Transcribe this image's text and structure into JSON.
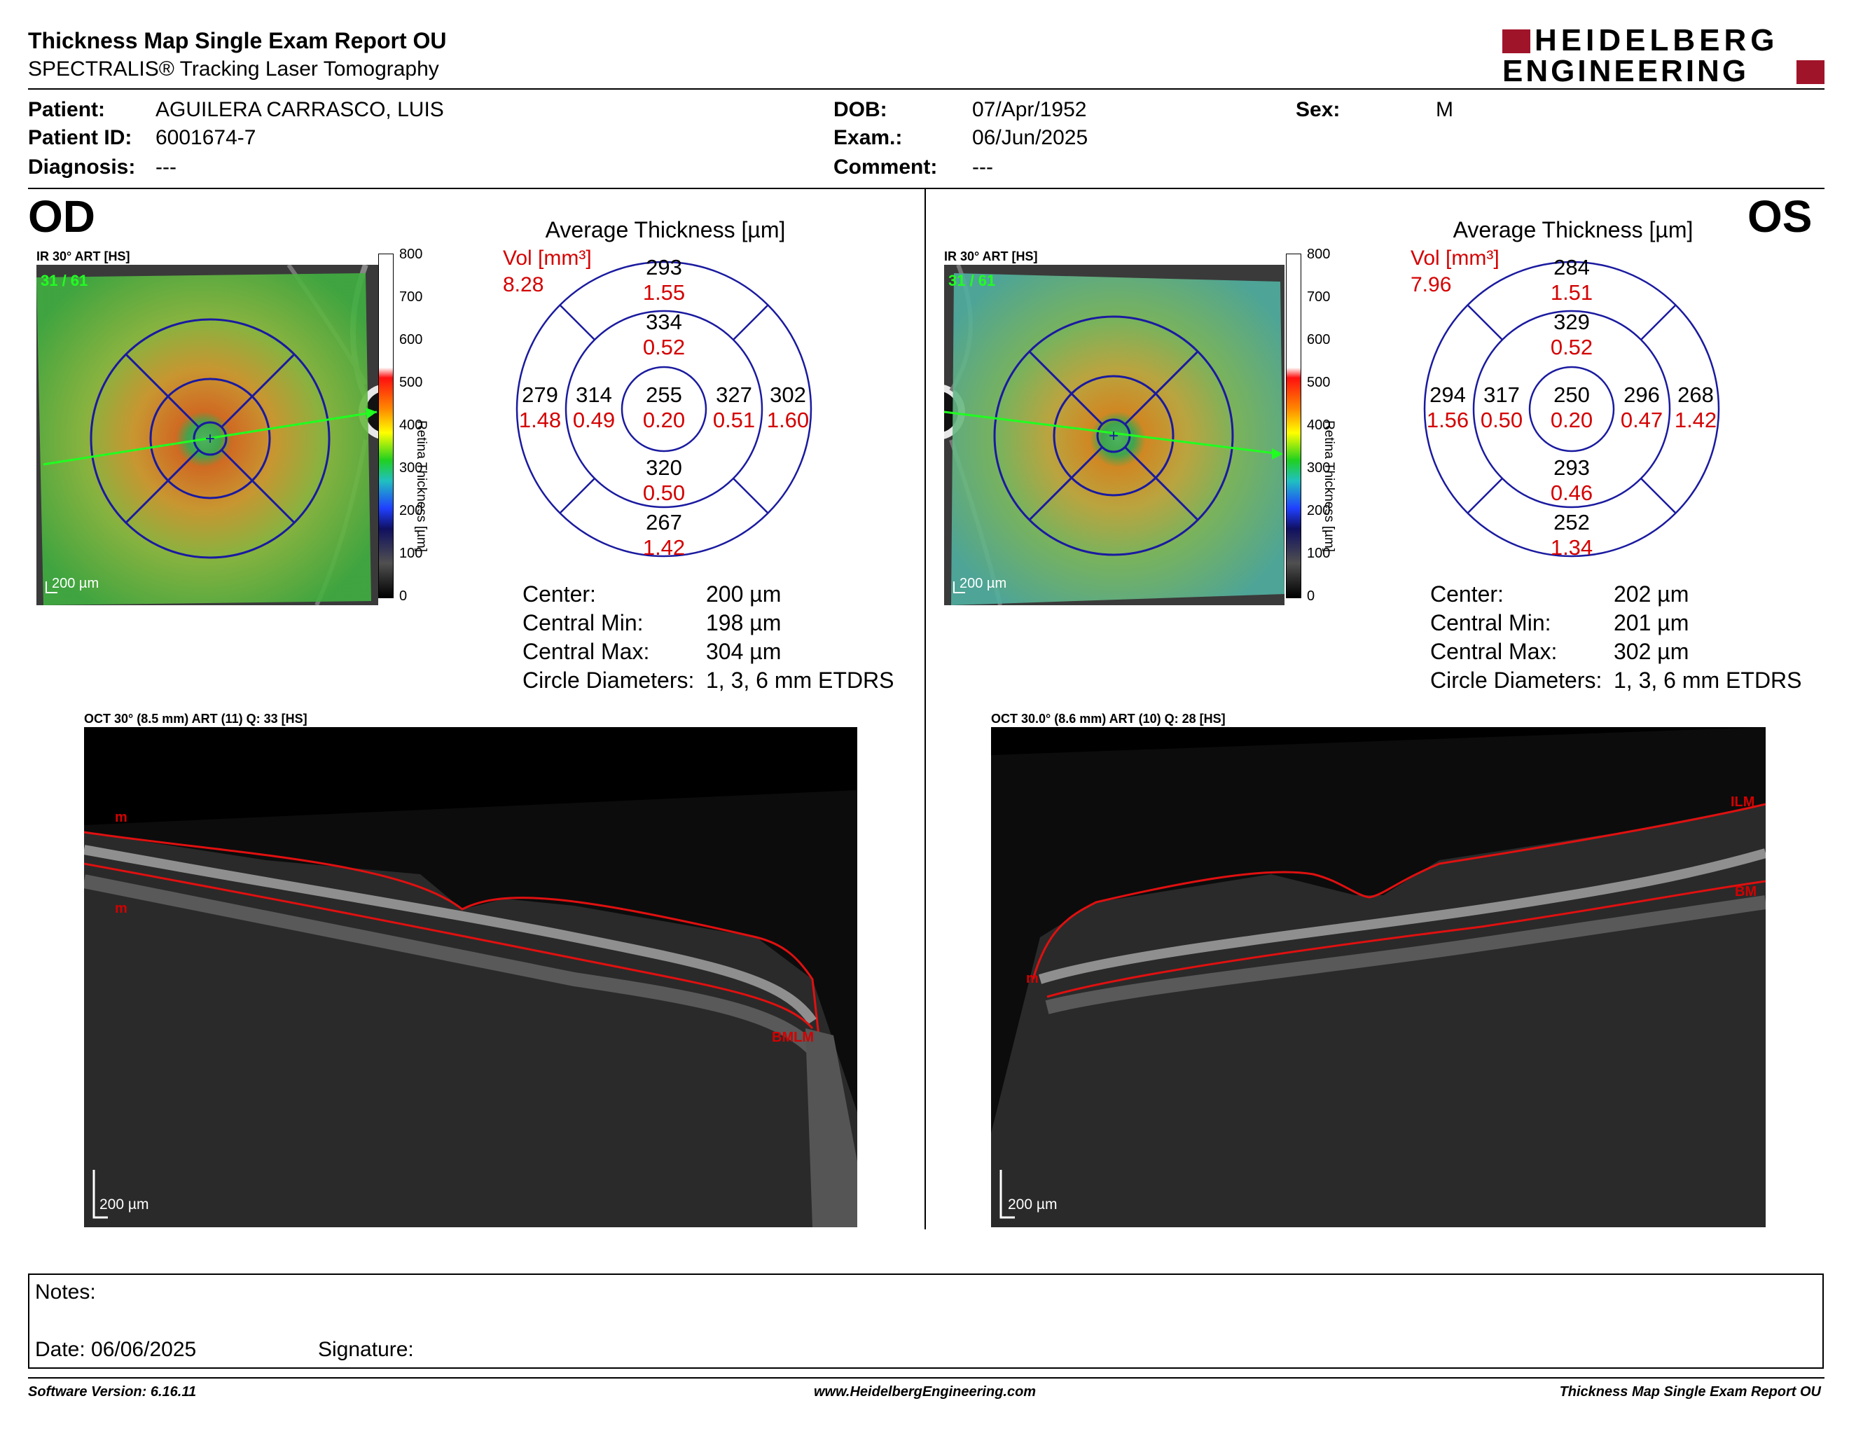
{
  "header": {
    "title": "Thickness Map Single Exam Report OU",
    "subtitle": "SPECTRALIS® Tracking Laser Tomography",
    "logo_line1": "HEIDELBERG",
    "logo_line2": "ENGINEERING"
  },
  "patient": {
    "patient_label": "Patient:",
    "patient_value": "AGUILERA CARRASCO, LUIS",
    "id_label": "Patient ID:",
    "id_value": "6001674-7",
    "diagnosis_label": "Diagnosis:",
    "diagnosis_value": "---",
    "dob_label": "DOB:",
    "dob_value": "07/Apr/1952",
    "exam_label": "Exam.:",
    "exam_value": "06/Jun/2025",
    "comment_label": "Comment:",
    "comment_value": "---",
    "sex_label": "Sex:",
    "sex_value": "M"
  },
  "colorbar": {
    "ticks": [
      "800",
      "700",
      "600",
      "500",
      "400",
      "300",
      "200",
      "100",
      "0"
    ],
    "label": "Retina Thickness [µm]"
  },
  "od": {
    "eye": "OD",
    "ir_label": "IR 30° ART [HS]",
    "frame_label": "31 / 61",
    "scale_label": "200 µm",
    "avg_title": "Average Thickness [µm]",
    "vol_label": "Vol [mm³]",
    "vol_value": "8.28",
    "sectors": {
      "top": [
        "293",
        "1.55"
      ],
      "inner_top": [
        "334",
        "0.52"
      ],
      "left": [
        "279",
        "1.48"
      ],
      "inner_left": [
        "314",
        "0.49"
      ],
      "center": [
        "255",
        "0.20"
      ],
      "inner_right": [
        "327",
        "0.51"
      ],
      "right": [
        "302",
        "1.60"
      ],
      "inner_bottom": [
        "320",
        "0.50"
      ],
      "bottom": [
        "267",
        "1.42"
      ]
    },
    "stats": [
      {
        "label": "Center:",
        "value": "200 µm"
      },
      {
        "label": "Central Min:",
        "value": "198 µm"
      },
      {
        "label": "Central Max:",
        "value": "304 µm"
      },
      {
        "label": "Circle Diameters:",
        "value": "1, 3, 6 mm ETDRS"
      }
    ],
    "oct_label": "OCT 30° (8.5 mm) ART (11) Q: 33 [HS]",
    "oct_scale": "200 µm",
    "oct_marks": [
      "m",
      "m",
      "BMLM"
    ]
  },
  "os": {
    "eye": "OS",
    "ir_label": "IR 30° ART [HS]",
    "frame_label": "31 / 61",
    "scale_label": "200 µm",
    "avg_title": "Average Thickness [µm]",
    "vol_label": "Vol [mm³]",
    "vol_value": "7.96",
    "sectors": {
      "top": [
        "284",
        "1.51"
      ],
      "inner_top": [
        "329",
        "0.52"
      ],
      "left": [
        "294",
        "1.56"
      ],
      "inner_left": [
        "317",
        "0.50"
      ],
      "center": [
        "250",
        "0.20"
      ],
      "inner_right": [
        "296",
        "0.47"
      ],
      "right": [
        "268",
        "1.42"
      ],
      "inner_bottom": [
        "293",
        "0.46"
      ],
      "bottom": [
        "252",
        "1.34"
      ]
    },
    "stats": [
      {
        "label": "Center:",
        "value": "202 µm"
      },
      {
        "label": "Central Min:",
        "value": "201 µm"
      },
      {
        "label": "Central Max:",
        "value": "302 µm"
      },
      {
        "label": "Circle Diameters:",
        "value": "1, 3, 6 mm ETDRS"
      }
    ],
    "oct_label": "OCT 30.0° (8.6 mm) ART (10) Q: 28 [HS]",
    "oct_scale": "200 µm",
    "oct_marks": [
      "ILM",
      "BM",
      "m"
    ]
  },
  "notes": {
    "notes_label": "Notes:",
    "date_label": "Date: 06/06/2025",
    "signature_label": "Signature:"
  },
  "footer": {
    "software": "Software Version: 6.16.11",
    "website": "www.HeidelbergEngineering.com",
    "report": "Thickness Map Single Exam Report OU"
  },
  "colors": {
    "ring_blue": "#1a1aa0",
    "value_red": "#d40000",
    "segmentation_red": "#e01010",
    "logo_red": "#a0142a"
  }
}
